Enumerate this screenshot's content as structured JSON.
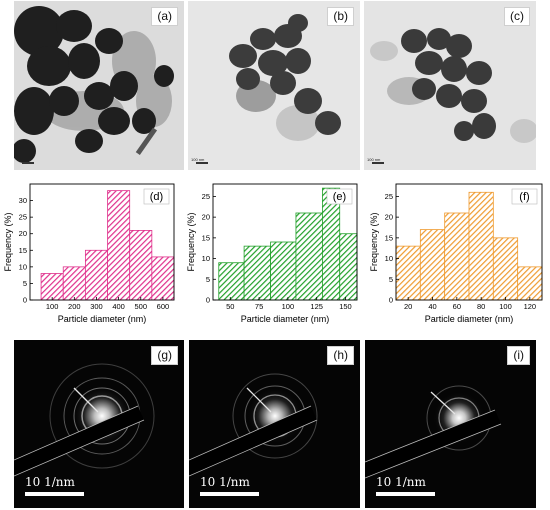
{
  "panels": {
    "a": "(a)",
    "b": "(b)",
    "c": "(c)",
    "d": "(d)",
    "e": "(e)",
    "f": "(f)",
    "g": "(g)",
    "h": "(h)",
    "i": "(i)"
  },
  "tem_scalebars": {
    "a": "",
    "b": "100 nm",
    "c": "100 nm"
  },
  "saed_scale": "10 1/nm",
  "colors": {
    "d": "#e0308c",
    "e": "#22a02a",
    "f": "#ef9b30"
  },
  "chart_data": [
    {
      "type": "bar",
      "panel": "(d)",
      "xlabel": "Particle diameter (nm)",
      "ylabel": "Frequency (%)",
      "bin_edges": [
        50,
        150,
        250,
        350,
        450,
        550,
        650
      ],
      "values": [
        8,
        10,
        15,
        33,
        21,
        13
      ],
      "xlim": [
        0,
        650
      ],
      "ylim": [
        0,
        35
      ],
      "xticks": [
        100,
        200,
        300,
        400,
        500,
        600
      ],
      "yticks": [
        0,
        5,
        10,
        15,
        20,
        25,
        30
      ],
      "fill": "hatched"
    },
    {
      "type": "bar",
      "panel": "(e)",
      "xlabel": "Particle diameter (nm)",
      "ylabel": "Frequency (%)",
      "bin_edges": [
        40,
        62,
        85,
        107,
        130,
        145,
        160
      ],
      "values": [
        9,
        13,
        14,
        21,
        27,
        16
      ],
      "xlim": [
        35,
        160
      ],
      "ylim": [
        0,
        28
      ],
      "xticks": [
        50,
        75,
        100,
        125,
        150
      ],
      "yticks": [
        0,
        5,
        10,
        15,
        20,
        25
      ],
      "fill": "hatched"
    },
    {
      "type": "bar",
      "panel": "(f)",
      "xlabel": "Particle diameter (nm)",
      "ylabel": "Frequency (%)",
      "bin_edges": [
        10,
        30,
        50,
        70,
        90,
        110,
        130
      ],
      "values": [
        13,
        17,
        21,
        26,
        15,
        8
      ],
      "xlim": [
        10,
        130
      ],
      "ylim": [
        0,
        28
      ],
      "xticks": [
        20,
        40,
        60,
        80,
        100,
        120
      ],
      "yticks": [
        0,
        5,
        10,
        15,
        20,
        25
      ],
      "fill": "hatched"
    }
  ]
}
